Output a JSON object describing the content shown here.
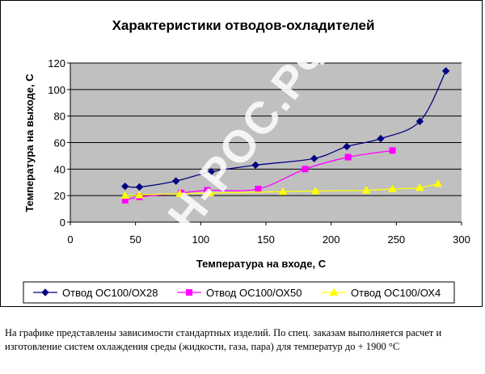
{
  "chart_data": {
    "type": "line",
    "title": "Характеристики отводов-охладителей",
    "xlabel": "Температура на входе, С",
    "ylabel": "Температура на выходе, С",
    "xlim": [
      0,
      300
    ],
    "ylim": [
      0,
      120
    ],
    "xticks": [
      0,
      50,
      100,
      150,
      200,
      250,
      300
    ],
    "yticks": [
      0,
      20,
      40,
      60,
      80,
      100,
      120
    ],
    "grid": "horizontal",
    "plot_background": "#c0c0c0",
    "legend_position": "bottom",
    "series": [
      {
        "name": "Отвод ОС100/ОХ28",
        "color": "#000080",
        "marker": "diamond",
        "x": [
          42,
          53,
          81,
          108,
          142,
          187,
          212,
          238,
          268,
          288
        ],
        "y": [
          27,
          26.5,
          31,
          38,
          43,
          48,
          57,
          63,
          76,
          114
        ]
      },
      {
        "name": "Отвод ОС100/ОХ50",
        "color": "#ff00ff",
        "marker": "square",
        "x": [
          42,
          53,
          85,
          105,
          144,
          180,
          213,
          247
        ],
        "y": [
          16.5,
          19,
          22,
          24,
          25,
          40,
          49,
          54
        ]
      },
      {
        "name": "Отвод ОС100/ОХ4",
        "color": "#ffff00",
        "marker": "triangle",
        "x": [
          42,
          53,
          84,
          107,
          163,
          188,
          227,
          247,
          268,
          282
        ],
        "y": [
          20,
          20.5,
          21.5,
          22,
          23,
          23.5,
          24,
          25,
          26,
          29
        ]
      }
    ]
  },
  "watermark": "КОН-РОС.РФ",
  "caption": "На графике представлены зависимости стандартных изделий. По спец. заказам выполняется расчет и изготовление систем охлаждения среды (жидкости, газа, пара) для температур до + 1900 °С"
}
